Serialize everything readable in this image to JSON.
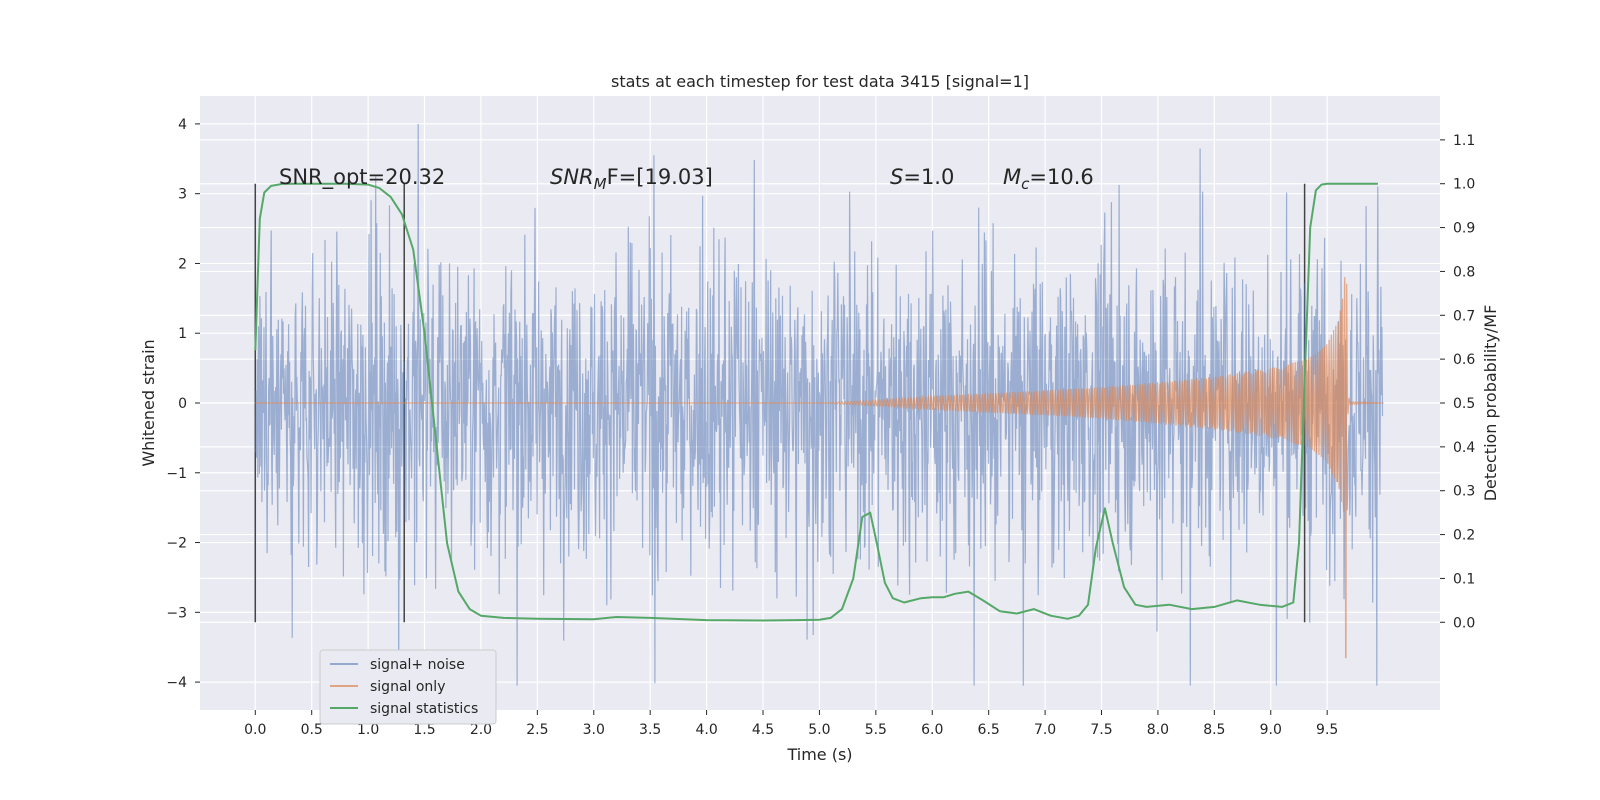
{
  "chart_data": {
    "type": "line",
    "title": "stats at each timestep for test data 3415 [signal=1]",
    "xlabel": "Time (s)",
    "ylabel": "Whitened strain",
    "y2label": "Detection probability/MF",
    "xlim": [
      -0.49,
      10.5
    ],
    "ylim": [
      -4.4,
      4.4
    ],
    "y2lim": [
      -0.2,
      1.2
    ],
    "x_ticks": [
      0.0,
      0.5,
      1.0,
      1.5,
      2.0,
      2.5,
      3.0,
      3.5,
      4.0,
      4.5,
      5.0,
      5.5,
      6.0,
      6.5,
      7.0,
      7.5,
      8.0,
      8.5,
      9.0,
      9.5
    ],
    "x_tick_labels": [
      "0.0",
      "0.5",
      "1.0",
      "1.5",
      "2.0",
      "2.5",
      "3.0",
      "3.5",
      "4.0",
      "4.5",
      "5.0",
      "5.5",
      "6.0",
      "6.5",
      "7.0",
      "7.5",
      "8.0",
      "8.5",
      "9.0",
      "9.5"
    ],
    "y_ticks": [
      -4,
      -3,
      -2,
      -1,
      0,
      1,
      2,
      3,
      4
    ],
    "y_tick_labels": [
      "−4",
      "−3",
      "−2",
      "−1",
      "0",
      "1",
      "2",
      "3",
      "4"
    ],
    "y2_ticks": [
      0.0,
      0.1,
      0.2,
      0.3,
      0.4,
      0.5,
      0.6,
      0.7,
      0.8,
      0.9,
      1.0,
      1.1
    ],
    "y2_tick_labels": [
      "0.0",
      "0.1",
      "0.2",
      "0.3",
      "0.4",
      "0.5",
      "0.6",
      "0.7",
      "0.8",
      "0.9",
      "1.0",
      "1.1"
    ],
    "grid": true,
    "legend_position": "lower-left",
    "background_color": "#eaeaf2",
    "annotations": {
      "snr_opt": "SNR_opt=20.32",
      "snr_mf_main": "SNR",
      "snr_mf_sub": "M",
      "snr_mf_rest": "F=[19.03]",
      "s_main": "S",
      "s_rest": "=1.0",
      "mc_main": "M",
      "mc_sub": "c",
      "mc_rest": "=10.6"
    },
    "vertical_lines_x": [
      0.0,
      1.32,
      9.3
    ],
    "series": [
      {
        "name": "signal+ noise",
        "color": "#4c72b0",
        "opacity": 0.5,
        "x_range": [
          0.0,
          9.99
        ],
        "typical_band": [
          -1.3,
          1.3
        ],
        "peak_range": [
          -4.05,
          4.0
        ]
      },
      {
        "name": "signal only",
        "color": "#dd8452",
        "opacity": 0.65,
        "x": [
          0.0,
          5.0,
          5.5,
          6.0,
          6.5,
          7.0,
          7.5,
          8.0,
          8.5,
          9.0,
          9.3,
          9.5,
          9.6,
          9.65,
          9.67,
          9.68,
          9.7,
          10.0
        ],
        "envelope": [
          0.0,
          0.0,
          0.04,
          0.1,
          0.14,
          0.18,
          0.23,
          0.3,
          0.38,
          0.5,
          0.62,
          0.85,
          1.2,
          1.8,
          2.7,
          0.2,
          0.02,
          0.0
        ],
        "min_dip": -3.65
      },
      {
        "name": "signal statistics",
        "color": "#55a868",
        "axis": "right",
        "x": [
          0.0,
          0.04,
          0.08,
          0.14,
          0.25,
          0.5,
          0.8,
          1.0,
          1.1,
          1.2,
          1.3,
          1.4,
          1.5,
          1.6,
          1.7,
          1.8,
          1.9,
          2.0,
          2.2,
          2.5,
          3.0,
          3.2,
          3.5,
          4.0,
          4.5,
          4.8,
          5.0,
          5.1,
          5.2,
          5.3,
          5.38,
          5.45,
          5.5,
          5.58,
          5.65,
          5.75,
          5.9,
          6.0,
          6.1,
          6.2,
          6.32,
          6.45,
          6.6,
          6.75,
          6.9,
          7.05,
          7.2,
          7.3,
          7.38,
          7.45,
          7.53,
          7.6,
          7.7,
          7.8,
          7.9,
          8.1,
          8.3,
          8.5,
          8.7,
          8.9,
          9.1,
          9.2,
          9.25,
          9.3,
          9.35,
          9.4,
          9.45,
          9.5,
          9.6,
          9.8,
          9.95
        ],
        "values": [
          0.62,
          0.92,
          0.98,
          0.995,
          1.0,
          1.0,
          1.0,
          0.998,
          0.99,
          0.97,
          0.93,
          0.85,
          0.66,
          0.42,
          0.18,
          0.07,
          0.03,
          0.015,
          0.01,
          0.008,
          0.007,
          0.012,
          0.01,
          0.005,
          0.004,
          0.005,
          0.006,
          0.01,
          0.03,
          0.1,
          0.24,
          0.25,
          0.19,
          0.09,
          0.055,
          0.045,
          0.055,
          0.057,
          0.057,
          0.065,
          0.07,
          0.05,
          0.025,
          0.02,
          0.03,
          0.015,
          0.008,
          0.015,
          0.04,
          0.17,
          0.26,
          0.18,
          0.08,
          0.04,
          0.035,
          0.04,
          0.03,
          0.035,
          0.05,
          0.04,
          0.035,
          0.045,
          0.18,
          0.55,
          0.9,
          0.985,
          0.998,
          1.0,
          1.0,
          1.0,
          1.0
        ]
      }
    ]
  }
}
